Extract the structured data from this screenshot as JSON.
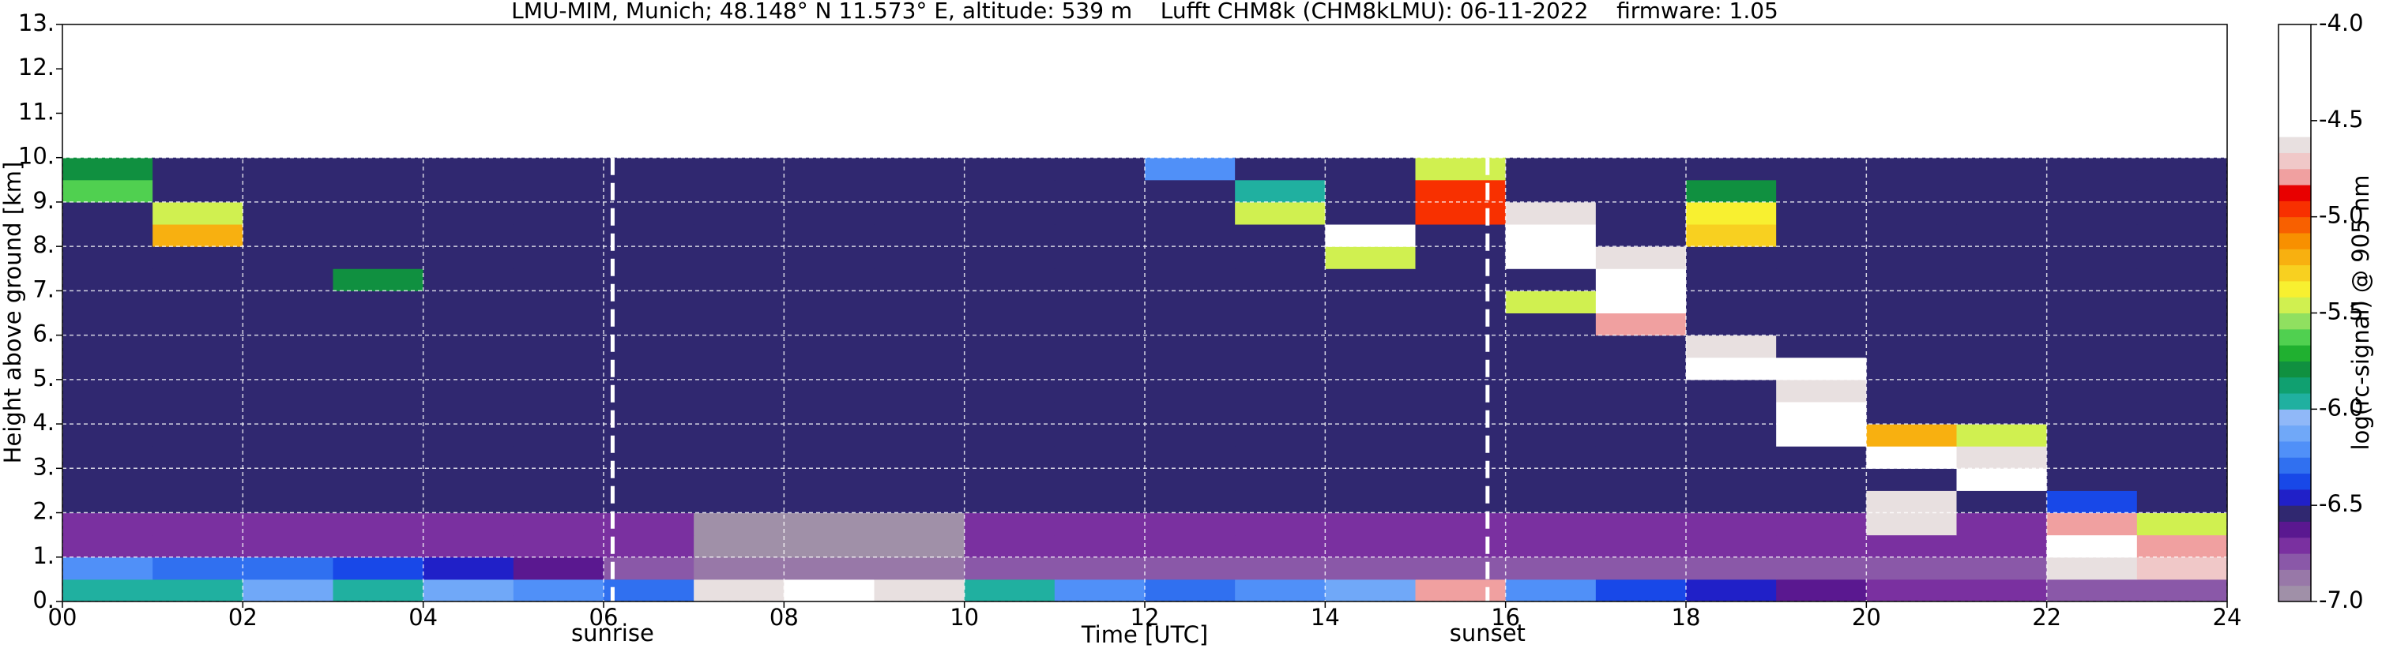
{
  "chart_data": {
    "type": "heatmap",
    "title": "LMU-MIM, Munich; 48.148° N 11.573° E, altitude: 539 m    Lufft CHM8k (CHM8kLMU): 06-11-2022    firmware: 1.05",
    "xlabel": "Time [UTC]",
    "ylabel": "Height above ground [km]",
    "colorbar_label": "log(rc-signal) @ 905 nm",
    "xlim": [
      0,
      24
    ],
    "ylim": [
      0,
      13
    ],
    "xticks": [
      {
        "value": 0,
        "label": "00"
      },
      {
        "value": 2,
        "label": "02"
      },
      {
        "value": 4,
        "label": "04"
      },
      {
        "value": 6,
        "label": "06"
      },
      {
        "value": 8,
        "label": "08"
      },
      10,
      12,
      14,
      16,
      18,
      20,
      22,
      24
    ],
    "yticks": [
      {
        "value": 0,
        "label": "0."
      },
      {
        "value": 1,
        "label": "1."
      },
      {
        "value": 2,
        "label": "2."
      },
      {
        "value": 3,
        "label": "3."
      },
      {
        "value": 4,
        "label": "4."
      },
      {
        "value": 5,
        "label": "5."
      },
      {
        "value": 6,
        "label": "6."
      },
      {
        "value": 7,
        "label": "7."
      },
      {
        "value": 8,
        "label": "8."
      },
      {
        "value": 9,
        "label": "9."
      },
      {
        "value": 10,
        "label": "10."
      },
      {
        "value": 11,
        "label": "11."
      },
      {
        "value": 12,
        "label": "12."
      },
      {
        "value": 13,
        "label": "13."
      }
    ],
    "grid": true,
    "xbins": [
      0,
      1,
      2,
      3,
      4,
      5,
      6,
      7,
      8,
      9,
      10,
      11,
      12,
      13,
      14,
      15,
      16,
      17,
      18,
      19,
      20,
      21,
      22,
      23,
      24
    ],
    "ybins": [
      0,
      0.5,
      1,
      1.5,
      2,
      2.5,
      3,
      3.5,
      4,
      4.5,
      5,
      5.5,
      6,
      6.5,
      7,
      7.5,
      8,
      8.5,
      9,
      9.5,
      10
    ],
    "z": [
      [
        -6.0,
        -6.0,
        -6.1,
        -6.0,
        -6.1,
        -6.2,
        -6.3,
        -4.6,
        -4.5,
        -4.6,
        -6.0,
        -6.2,
        -6.3,
        -6.2,
        -6.1,
        -4.8,
        -6.2,
        -6.4,
        -6.5,
        -6.6,
        -6.7,
        -6.7,
        -6.8,
        -6.8
      ],
      [
        -6.2,
        -6.3,
        -6.3,
        -6.4,
        -6.5,
        -6.6,
        -6.8,
        -6.9,
        -6.9,
        -6.9,
        -6.8,
        -6.8,
        -6.8,
        -6.8,
        -6.8,
        -6.8,
        -6.8,
        -6.8,
        -6.8,
        -6.8,
        -6.8,
        -6.8,
        -4.6,
        -4.7
      ],
      [
        -6.7,
        -6.7,
        -6.7,
        -6.7,
        -6.7,
        -6.7,
        -6.7,
        -6.95,
        -6.95,
        -6.95,
        -6.7,
        -6.7,
        -6.7,
        -6.7,
        -6.7,
        -6.7,
        -6.7,
        -6.7,
        -6.7,
        -6.7,
        -6.7,
        -6.7,
        -4.5,
        -4.8
      ],
      [
        -6.7,
        -6.7,
        -6.7,
        -6.7,
        -6.7,
        -6.7,
        -6.7,
        -6.95,
        -6.95,
        -6.95,
        -6.7,
        -6.7,
        -6.7,
        -6.7,
        -6.7,
        -6.7,
        -6.7,
        -6.7,
        -6.7,
        -6.7,
        -4.6,
        -6.7,
        -4.8,
        -5.5
      ],
      [
        -6.55,
        -6.55,
        -6.55,
        -6.55,
        -6.55,
        -6.55,
        -6.55,
        -6.55,
        -6.55,
        -6.55,
        -6.55,
        -6.55,
        -6.55,
        -6.55,
        -6.55,
        -6.55,
        -6.55,
        -6.55,
        -6.55,
        -6.55,
        -4.6,
        -6.55,
        -6.4,
        -6.55
      ],
      [
        -6.55,
        -6.55,
        -6.55,
        -6.55,
        -6.55,
        -6.55,
        -6.55,
        -6.55,
        -6.55,
        -6.55,
        -6.55,
        -6.55,
        -6.55,
        -6.55,
        -6.55,
        -6.55,
        -6.55,
        -6.55,
        -6.55,
        -6.55,
        -6.55,
        -4.3,
        -6.55,
        -6.55
      ],
      [
        -6.55,
        -6.55,
        -6.55,
        -6.55,
        -6.55,
        -6.55,
        -6.55,
        -6.55,
        -6.55,
        -6.55,
        -6.55,
        -6.55,
        -6.55,
        -6.55,
        -6.55,
        -6.55,
        -6.55,
        -6.55,
        -6.55,
        -6.55,
        -4.5,
        -4.6,
        -6.55,
        -6.55
      ],
      [
        -6.55,
        -6.55,
        -6.55,
        -6.55,
        -6.55,
        -6.55,
        -6.55,
        -6.55,
        -6.55,
        -6.55,
        -6.55,
        -6.55,
        -6.55,
        -6.55,
        -6.55,
        -6.55,
        -6.55,
        -6.55,
        -6.55,
        -4.4,
        -5.2,
        -5.5,
        -6.55,
        -6.55
      ],
      [
        -6.55,
        -6.55,
        -6.55,
        -6.55,
        -6.55,
        -6.55,
        -6.55,
        -6.55,
        -6.55,
        -6.55,
        -6.55,
        -6.55,
        -6.55,
        -6.55,
        -6.55,
        -6.55,
        -6.55,
        -6.55,
        -6.55,
        -4.3,
        -6.55,
        -6.55,
        -6.55,
        -6.55
      ],
      [
        -6.55,
        -6.55,
        -6.55,
        -6.55,
        -6.55,
        -6.55,
        -6.55,
        -6.55,
        -6.55,
        -6.55,
        -6.55,
        -6.55,
        -6.55,
        -6.55,
        -6.55,
        -6.55,
        -6.55,
        -6.55,
        -6.55,
        -4.6,
        -6.55,
        -6.55,
        -6.55,
        -6.55
      ],
      [
        -6.55,
        -6.55,
        -6.55,
        -6.55,
        -6.55,
        -6.55,
        -6.55,
        -6.55,
        -6.55,
        -6.55,
        -6.55,
        -6.55,
        -6.55,
        -6.55,
        -6.55,
        -6.55,
        -6.55,
        -6.55,
        -4.5,
        -4.5,
        -6.55,
        -6.55,
        -6.55,
        -6.55
      ],
      [
        -6.55,
        -6.55,
        -6.55,
        -6.55,
        -6.55,
        -6.55,
        -6.55,
        -6.55,
        -6.55,
        -6.55,
        -6.55,
        -6.55,
        -6.55,
        -6.55,
        -6.55,
        -6.55,
        -6.55,
        -6.55,
        -4.6,
        -6.55,
        -6.55,
        -6.55,
        -6.55,
        -6.55
      ],
      [
        -6.55,
        -6.55,
        -6.55,
        -6.55,
        -6.55,
        -6.55,
        -6.55,
        -6.55,
        -6.55,
        -6.55,
        -6.55,
        -6.55,
        -6.55,
        -6.55,
        -6.55,
        -6.55,
        -6.55,
        -4.8,
        -6.55,
        -6.55,
        -6.55,
        -6.55,
        -6.55,
        -6.55
      ],
      [
        -6.55,
        -6.55,
        -6.55,
        -6.55,
        -6.55,
        -6.55,
        -6.55,
        -6.55,
        -6.55,
        -6.55,
        -6.55,
        -6.55,
        -6.55,
        -6.55,
        -6.55,
        -6.55,
        -5.5,
        -4.2,
        -6.55,
        -6.55,
        -6.55,
        -6.55,
        -6.55,
        -6.55
      ],
      [
        -6.55,
        -6.55,
        -6.55,
        -5.8,
        -6.55,
        -6.55,
        -6.55,
        -6.55,
        -6.55,
        -6.55,
        -6.55,
        -6.55,
        -6.55,
        -6.55,
        -6.55,
        -6.55,
        -6.55,
        -4.3,
        -6.55,
        -6.55,
        -6.55,
        -6.55,
        -6.55,
        -6.55
      ],
      [
        -6.55,
        -6.55,
        -6.55,
        -6.55,
        -6.55,
        -6.55,
        -6.55,
        -6.55,
        -6.55,
        -6.55,
        -6.55,
        -6.55,
        -6.55,
        -6.55,
        -5.5,
        -6.55,
        -4.5,
        -4.6,
        -6.55,
        -6.55,
        -6.55,
        -6.55,
        -6.55,
        -6.55
      ],
      [
        -6.55,
        -5.2,
        -6.55,
        -6.55,
        -6.55,
        -6.55,
        -6.55,
        -6.55,
        -6.55,
        -6.55,
        -6.55,
        -6.55,
        -6.55,
        -6.55,
        -4.5,
        -6.55,
        -4.3,
        -6.55,
        -5.3,
        -6.55,
        -6.55,
        -6.55,
        -6.55,
        -6.55
      ],
      [
        -6.55,
        -5.5,
        -6.55,
        -6.55,
        -6.55,
        -6.55,
        -6.55,
        -6.55,
        -6.55,
        -6.55,
        -6.55,
        -6.55,
        -6.55,
        -5.5,
        -6.55,
        -5.0,
        -4.6,
        -6.55,
        -5.4,
        -6.55,
        -6.55,
        -6.55,
        -6.55,
        -6.55
      ],
      [
        -5.6,
        -6.55,
        -6.55,
        -6.55,
        -6.55,
        -6.55,
        -6.55,
        -6.55,
        -6.55,
        -6.55,
        -6.55,
        -6.55,
        -6.55,
        -6.0,
        -6.55,
        -5.0,
        -6.55,
        -6.55,
        -5.8,
        -6.55,
        -6.55,
        -6.55,
        -6.55,
        -6.55
      ],
      [
        -5.8,
        -6.55,
        -6.55,
        -6.55,
        -6.55,
        -6.55,
        -6.55,
        -6.55,
        -6.55,
        -6.55,
        -6.55,
        -6.55,
        -6.2,
        -6.55,
        -6.55,
        -5.5,
        -6.55,
        -6.55,
        -6.55,
        -6.55,
        -6.55,
        -6.55,
        -6.55,
        -6.55
      ]
    ],
    "clim": [
      -7,
      -4
    ],
    "colorbar_ticks": [
      {
        "value": -4,
        "label": "-4.0"
      },
      -4.5,
      {
        "value": -5,
        "label": "-5.0"
      },
      -5.5,
      {
        "value": -6,
        "label": "-6.0"
      },
      -6.5,
      {
        "value": -7,
        "label": "-7.0"
      }
    ],
    "colormap": [
      "#a090a8",
      "#9878a8",
      "#8a58a8",
      "#7a30a0",
      "#5a1890",
      "#302870",
      "#2020c8",
      "#1848e8",
      "#3070f0",
      "#5090f8",
      "#70a8f8",
      "#90b8f8",
      "#20b0a0",
      "#10a070",
      "#109040",
      "#20b030",
      "#50d050",
      "#90e060",
      "#d0f050",
      "#f8f030",
      "#f8d020",
      "#f8b010",
      "#f89000",
      "#f86000",
      "#f83000",
      "#e80000",
      "#f0a0a0",
      "#f0c8c8",
      "#e8e0e0",
      "#ffffff",
      "#ffffff",
      "#ffffff",
      "#ffffff",
      "#ffffff",
      "#ffffff",
      "#ffffff"
    ],
    "annotations": [
      {
        "x": 6.1,
        "text": "sunrise"
      },
      {
        "x": 15.8,
        "text": "sunset"
      }
    ]
  }
}
